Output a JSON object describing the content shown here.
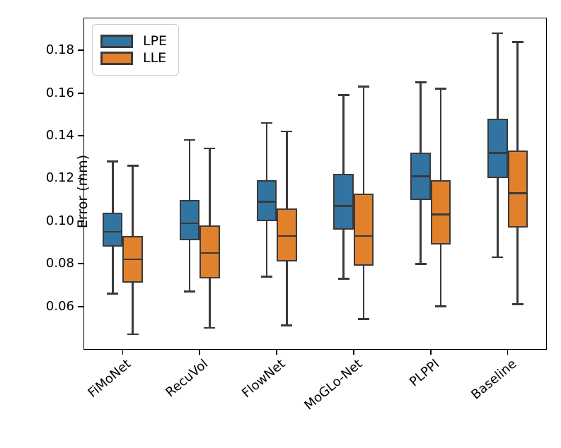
{
  "figure": {
    "ylabel": "Error (mm)"
  },
  "chart_data": {
    "type": "grouped_boxplot",
    "title": "",
    "xlabel": "",
    "ylabel": "Error (mm)",
    "categories": [
      "FiMoNet",
      "RecuVol",
      "FlowNet",
      "MoGLo-Net",
      "PLPPI",
      "Baseline"
    ],
    "ylim": [
      0.04,
      0.195
    ],
    "yticks": [
      0.06,
      0.08,
      0.1,
      0.12,
      0.14,
      0.16,
      0.18
    ],
    "grid": false,
    "legend_position": "upper left",
    "edge_color": "#3a3a3a",
    "spine_color": "#000000",
    "series": [
      {
        "name": "LPE",
        "color": "#3274a1",
        "boxes": [
          {
            "whislo": 0.066,
            "q1": 0.088,
            "med": 0.095,
            "q3": 0.104,
            "whishi": 0.128
          },
          {
            "whislo": 0.067,
            "q1": 0.091,
            "med": 0.099,
            "q3": 0.11,
            "whishi": 0.138
          },
          {
            "whislo": 0.074,
            "q1": 0.1,
            "med": 0.109,
            "q3": 0.119,
            "whishi": 0.146
          },
          {
            "whislo": 0.073,
            "q1": 0.096,
            "med": 0.107,
            "q3": 0.122,
            "whishi": 0.159
          },
          {
            "whislo": 0.08,
            "q1": 0.11,
            "med": 0.121,
            "q3": 0.132,
            "whishi": 0.165
          },
          {
            "whislo": 0.083,
            "q1": 0.12,
            "med": 0.132,
            "q3": 0.148,
            "whishi": 0.188
          }
        ]
      },
      {
        "name": "LLE",
        "color": "#e1812c",
        "boxes": [
          {
            "whislo": 0.047,
            "q1": 0.071,
            "med": 0.082,
            "q3": 0.093,
            "whishi": 0.126
          },
          {
            "whislo": 0.05,
            "q1": 0.073,
            "med": 0.085,
            "q3": 0.098,
            "whishi": 0.134
          },
          {
            "whislo": 0.051,
            "q1": 0.081,
            "med": 0.093,
            "q3": 0.106,
            "whishi": 0.142
          },
          {
            "whislo": 0.054,
            "q1": 0.079,
            "med": 0.093,
            "q3": 0.113,
            "whishi": 0.163
          },
          {
            "whislo": 0.06,
            "q1": 0.089,
            "med": 0.103,
            "q3": 0.119,
            "whishi": 0.162
          },
          {
            "whislo": 0.061,
            "q1": 0.097,
            "med": 0.113,
            "q3": 0.133,
            "whishi": 0.184
          }
        ]
      }
    ]
  }
}
